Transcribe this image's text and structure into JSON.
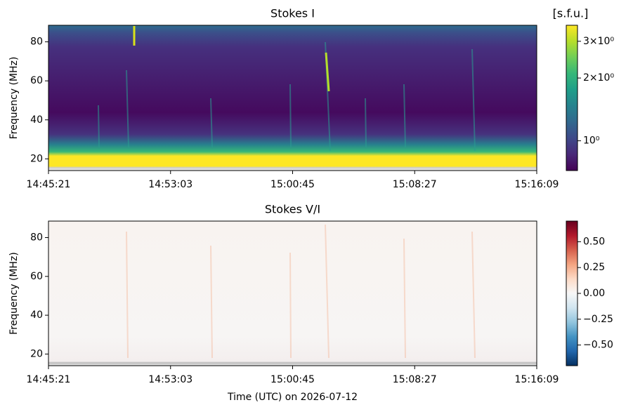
{
  "chart_data": [
    {
      "type": "heatmap",
      "title": "Stokes I",
      "ylabel": "Frequency (MHz)",
      "xlim": [
        "14:45:21",
        "15:16:09"
      ],
      "xticks": [
        "14:45:21",
        "14:53:03",
        "15:00:45",
        "15:08:27",
        "15:16:09"
      ],
      "ylim": [
        14,
        88.5
      ],
      "yticks": [
        20,
        40,
        60,
        80
      ],
      "colormap": "viridis",
      "colorbar_label": "[s.f.u.]",
      "color_scale": "log",
      "clim": [
        0.72,
        3.58
      ],
      "cticks": [
        {
          "value": 1,
          "label": "10⁰"
        },
        {
          "value": 2,
          "label": "2×10⁰"
        },
        {
          "value": 3,
          "label": "3×10⁰"
        }
      ]
    },
    {
      "type": "heatmap",
      "title": "Stokes V/I",
      "ylabel": "Frequency (MHz)",
      "xlabel": "Time (UTC) on 2026-07-12",
      "xlim": [
        "14:45:21",
        "15:16:09"
      ],
      "xticks": [
        "14:45:21",
        "14:53:03",
        "15:00:45",
        "15:08:27",
        "15:16:09"
      ],
      "ylim": [
        14,
        88.5
      ],
      "yticks": [
        20,
        40,
        60,
        80
      ],
      "colormap": "RdBu_r",
      "color_scale": "linear",
      "clim": [
        -0.7,
        0.7
      ],
      "cticks": [
        {
          "value": -0.5,
          "label": "−0.50"
        },
        {
          "value": -0.25,
          "label": "−0.25"
        },
        {
          "value": 0,
          "label": "0.00"
        },
        {
          "value": 0.25,
          "label": "0.25"
        },
        {
          "value": 0.5,
          "label": "0.50"
        }
      ]
    }
  ]
}
